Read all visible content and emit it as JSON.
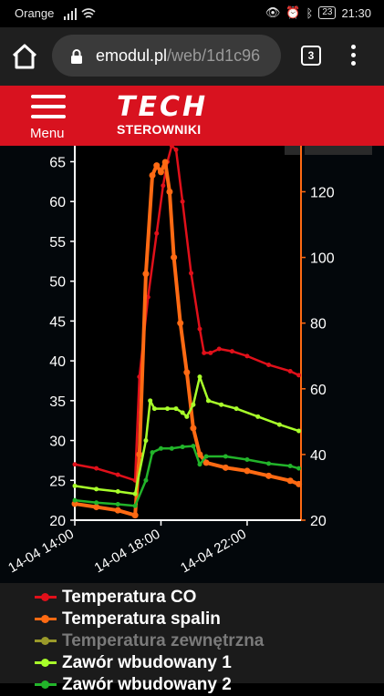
{
  "status_bar": {
    "carrier": "Orange",
    "battery": "23",
    "time": "21:30"
  },
  "browser": {
    "url_host": "emodul.pl",
    "url_path": "/web/1d1c96",
    "tab_count": "3",
    "icons": [
      "home-icon",
      "lock-icon",
      "tabs-icon",
      "kebab-menu-icon"
    ]
  },
  "app_header": {
    "menu_label": "Menu",
    "logo_main": "TECH",
    "logo_sub": "STEROWNIKI",
    "color": "#d8121f"
  },
  "chart_data": {
    "type": "line",
    "x_ticks": [
      "14-04 14:00",
      "14-04 18:00",
      "14-04 22:00"
    ],
    "x_range_hours": [
      14,
      24.5
    ],
    "left_axis": {
      "ticks": [
        20,
        25,
        30,
        35,
        40,
        45,
        50,
        55,
        60,
        65
      ],
      "range": [
        20,
        67
      ]
    },
    "right_axis": {
      "ticks": [
        20,
        40,
        60,
        80,
        100,
        120
      ],
      "range": [
        20,
        134
      ],
      "color": "#ff6a13"
    },
    "series": [
      {
        "name": "Temperatura CO",
        "color": "#e0101a",
        "axis": "left",
        "points": [
          [
            14.0,
            27.0
          ],
          [
            15.0,
            26.5
          ],
          [
            16.0,
            25.7
          ],
          [
            16.8,
            25.0
          ],
          [
            17.0,
            38.0
          ],
          [
            17.4,
            48.0
          ],
          [
            17.8,
            56.0
          ],
          [
            18.1,
            62.0
          ],
          [
            18.3,
            65.0
          ],
          [
            18.5,
            67.0
          ],
          [
            18.7,
            66.5
          ],
          [
            19.0,
            60.0
          ],
          [
            19.4,
            51.0
          ],
          [
            19.8,
            44.0
          ],
          [
            20.0,
            41.0
          ],
          [
            20.3,
            41.0
          ],
          [
            20.7,
            41.5
          ],
          [
            21.3,
            41.2
          ],
          [
            22.0,
            40.6
          ],
          [
            23.0,
            39.5
          ],
          [
            24.0,
            38.7
          ],
          [
            24.4,
            38.2
          ]
        ]
      },
      {
        "name": "Temperatura spalin",
        "color": "#ff6a13",
        "axis": "right",
        "points": [
          [
            14.0,
            25.0
          ],
          [
            15.0,
            24.0
          ],
          [
            16.0,
            23.0
          ],
          [
            16.8,
            21.5
          ],
          [
            17.0,
            40.0
          ],
          [
            17.3,
            95.0
          ],
          [
            17.6,
            125.0
          ],
          [
            17.8,
            128.0
          ],
          [
            18.0,
            126.0
          ],
          [
            18.2,
            129.0
          ],
          [
            18.4,
            120.0
          ],
          [
            18.6,
            100.0
          ],
          [
            18.9,
            80.0
          ],
          [
            19.2,
            65.0
          ],
          [
            19.5,
            48.0
          ],
          [
            19.8,
            40.0
          ],
          [
            20.1,
            37.5
          ],
          [
            21.0,
            36.0
          ],
          [
            22.0,
            35.0
          ],
          [
            23.0,
            33.5
          ],
          [
            24.0,
            32.0
          ],
          [
            24.4,
            31.0
          ]
        ]
      },
      {
        "name": "Temperatura zewnętrzna",
        "color": "#9a9a2a",
        "axis": "left",
        "points": []
      },
      {
        "name": "Zawór wbudowany 1",
        "color": "#a8ff2a",
        "axis": "left",
        "points": [
          [
            14.0,
            24.3
          ],
          [
            15.0,
            23.9
          ],
          [
            16.0,
            23.6
          ],
          [
            16.8,
            23.3
          ],
          [
            17.3,
            30.0
          ],
          [
            17.5,
            35.0
          ],
          [
            17.7,
            34.0
          ],
          [
            18.3,
            34.0
          ],
          [
            18.7,
            34.0
          ],
          [
            19.0,
            33.5
          ],
          [
            19.2,
            33.0
          ],
          [
            19.5,
            34.5
          ],
          [
            19.8,
            38.0
          ],
          [
            20.2,
            35.0
          ],
          [
            20.8,
            34.5
          ],
          [
            21.5,
            34.0
          ],
          [
            22.5,
            33.0
          ],
          [
            23.5,
            32.0
          ],
          [
            24.4,
            31.2
          ]
        ]
      },
      {
        "name": "Zawór wbudowany 2",
        "color": "#22b42a",
        "axis": "left",
        "points": [
          [
            14.0,
            22.5
          ],
          [
            15.0,
            22.2
          ],
          [
            16.0,
            22.0
          ],
          [
            16.8,
            21.8
          ],
          [
            17.3,
            25.0
          ],
          [
            17.6,
            28.5
          ],
          [
            18.0,
            29.0
          ],
          [
            18.5,
            29.0
          ],
          [
            19.0,
            29.2
          ],
          [
            19.5,
            29.3
          ],
          [
            19.8,
            27.0
          ],
          [
            20.1,
            28.0
          ],
          [
            21.0,
            28.0
          ],
          [
            22.0,
            27.6
          ],
          [
            23.0,
            27.1
          ],
          [
            24.0,
            26.8
          ],
          [
            24.4,
            26.5
          ]
        ]
      }
    ],
    "legend_position": "bottom",
    "grid": false
  },
  "legend": [
    {
      "label": "Temperatura CO",
      "color": "#e0101a",
      "text_color": "#ffffff"
    },
    {
      "label": "Temperatura spalin",
      "color": "#ff6a13",
      "text_color": "#ffffff"
    },
    {
      "label": "Temperatura zewnętrzna",
      "color": "#9a9a2a",
      "text_color": "#7a7a7a"
    },
    {
      "label": "Zawór wbudowany 1",
      "color": "#a8ff2a",
      "text_color": "#ffffff"
    },
    {
      "label": "Zawór wbudowany 2",
      "color": "#22b42a",
      "text_color": "#ffffff"
    }
  ]
}
